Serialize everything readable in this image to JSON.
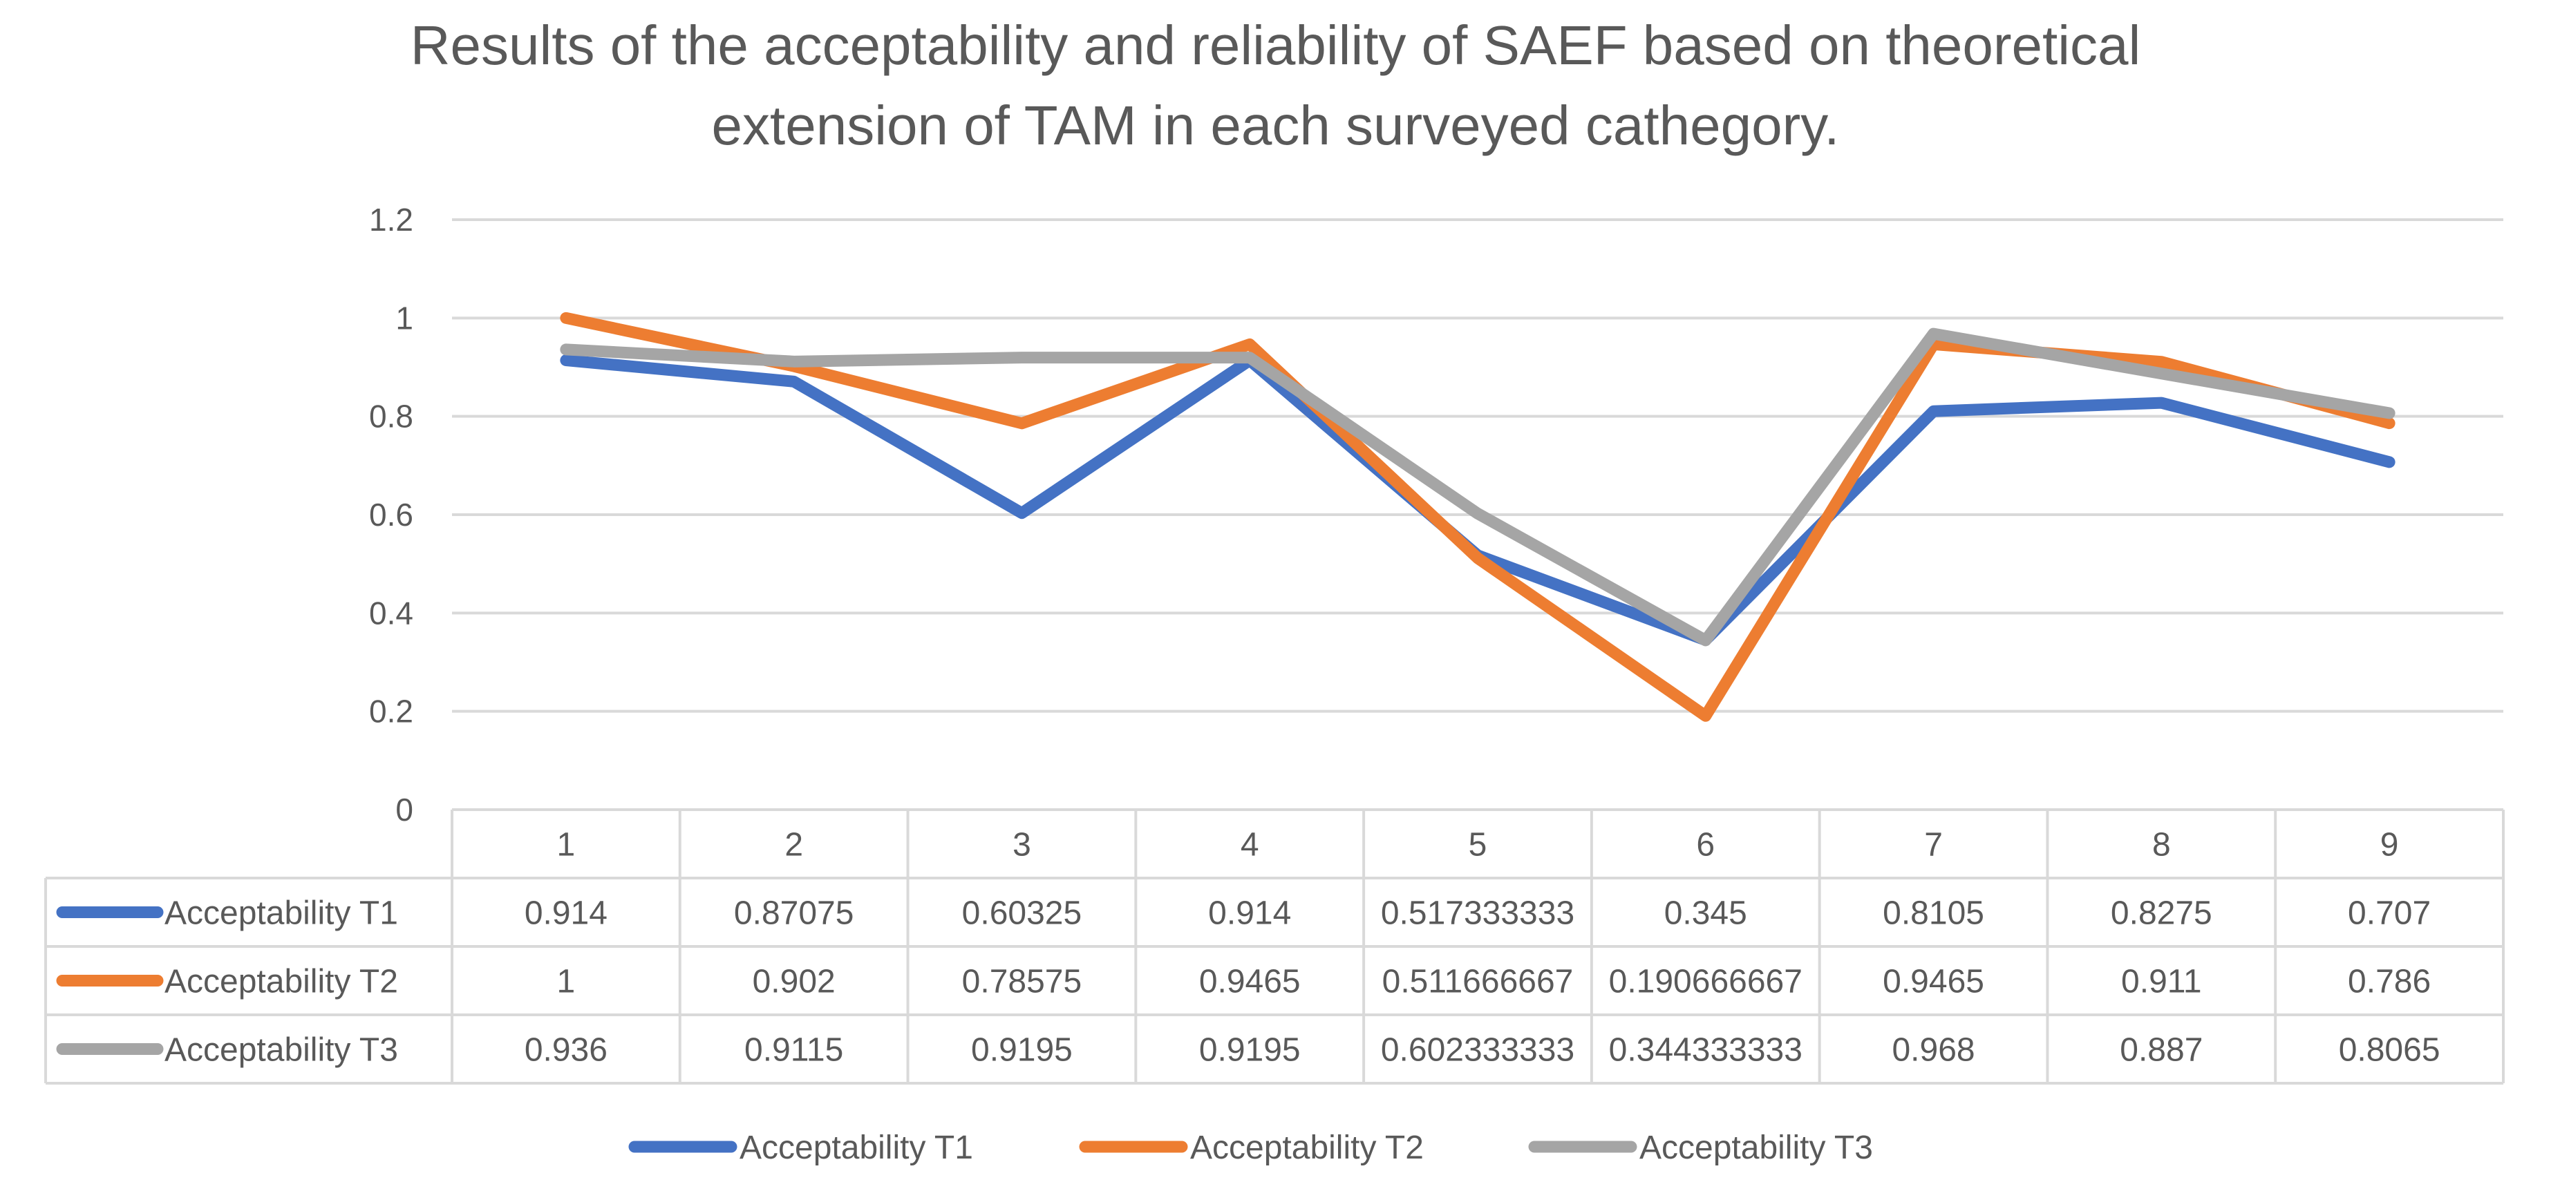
{
  "chart_data": {
    "type": "line",
    "title_lines": [
      "Results of the acceptability and reliability of SAEF based on theoretical",
      "extension of TAM in each surveyed cathegory."
    ],
    "categories": [
      "1",
      "2",
      "3",
      "4",
      "5",
      "6",
      "7",
      "8",
      "9"
    ],
    "ylim": [
      0,
      1.2
    ],
    "yticks": [
      "0",
      "0.2",
      "0.4",
      "0.6",
      "0.8",
      "1",
      "1.2"
    ],
    "ytick_values": [
      0,
      0.2,
      0.4,
      0.6,
      0.8,
      1,
      1.2
    ],
    "grid": true,
    "legend_position": "bottom",
    "series": [
      {
        "name": "Acceptability T1",
        "color": "#4472C4",
        "values": [
          0.914,
          0.87075,
          0.60325,
          0.914,
          0.517333333,
          0.345,
          0.8105,
          0.8275,
          0.707
        ],
        "labels": [
          "0.914",
          "0.87075",
          "0.60325",
          "0.914",
          "0.517333333",
          "0.345",
          "0.8105",
          "0.8275",
          "0.707"
        ]
      },
      {
        "name": "Acceptability T2",
        "color": "#ED7D31",
        "values": [
          1,
          0.902,
          0.78575,
          0.9465,
          0.511666667,
          0.190666667,
          0.9465,
          0.911,
          0.786
        ],
        "labels": [
          "1",
          "0.902",
          "0.78575",
          "0.9465",
          "0.511666667",
          "0.190666667",
          "0.9465",
          "0.911",
          "0.786"
        ]
      },
      {
        "name": "Acceptability T3",
        "color": "#A5A5A5",
        "values": [
          0.936,
          0.9115,
          0.9195,
          0.9195,
          0.602333333,
          0.344333333,
          0.968,
          0.887,
          0.8065
        ],
        "labels": [
          "0.936",
          "0.9115",
          "0.9195",
          "0.9195",
          "0.602333333",
          "0.344333333",
          "0.968",
          "0.887",
          "0.8065"
        ]
      }
    ]
  }
}
